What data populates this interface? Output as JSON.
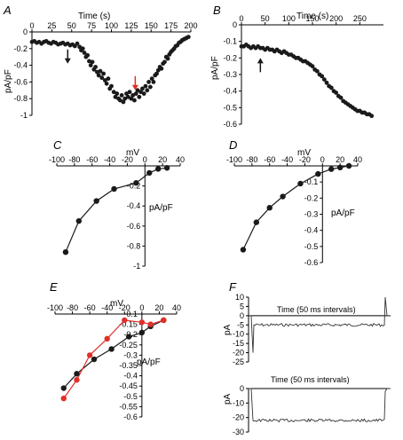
{
  "colors": {
    "black": "#1a1a1a",
    "red": "#e0302a",
    "trace": "#333333"
  },
  "chart_data": [
    {
      "panel": "A",
      "type": "scatter",
      "xlabel": "Time (s)",
      "ylabel": "pA/pF",
      "xlim": [
        0,
        200
      ],
      "ylim": [
        -1,
        0
      ],
      "xticks": [
        0,
        25,
        50,
        75,
        100,
        125,
        150,
        175,
        200
      ],
      "yticks": [
        0,
        -0.2,
        -0.4,
        -0.6,
        -0.8,
        -1
      ],
      "arrows": [
        {
          "x": 45,
          "color": "black"
        },
        {
          "x": 130,
          "color": "red"
        }
      ],
      "series": [
        {
          "points": [
            [
              0,
              -0.12
            ],
            [
              3,
              -0.11
            ],
            [
              6,
              -0.13
            ],
            [
              9,
              -0.12
            ],
            [
              12,
              -0.14
            ],
            [
              15,
              -0.12
            ],
            [
              18,
              -0.11
            ],
            [
              21,
              -0.13
            ],
            [
              24,
              -0.14
            ],
            [
              27,
              -0.12
            ],
            [
              30,
              -0.13
            ],
            [
              33,
              -0.15
            ],
            [
              36,
              -0.14
            ],
            [
              39,
              -0.13
            ],
            [
              42,
              -0.15
            ],
            [
              45,
              -0.14
            ],
            [
              48,
              -0.16
            ],
            [
              51,
              -0.15
            ],
            [
              54,
              -0.17
            ],
            [
              57,
              -0.14
            ],
            [
              60,
              -0.18
            ],
            [
              62,
              -0.22
            ],
            [
              64,
              -0.2
            ],
            [
              66,
              -0.25
            ],
            [
              68,
              -0.3
            ],
            [
              70,
              -0.28
            ],
            [
              72,
              -0.35
            ],
            [
              74,
              -0.4
            ],
            [
              76,
              -0.36
            ],
            [
              78,
              -0.45
            ],
            [
              80,
              -0.42
            ],
            [
              82,
              -0.48
            ],
            [
              84,
              -0.52
            ],
            [
              86,
              -0.47
            ],
            [
              88,
              -0.55
            ],
            [
              90,
              -0.5
            ],
            [
              92,
              -0.58
            ],
            [
              94,
              -0.62
            ],
            [
              96,
              -0.56
            ],
            [
              98,
              -0.68
            ],
            [
              100,
              -0.65
            ],
            [
              103,
              -0.72
            ],
            [
              105,
              -0.78
            ],
            [
              107,
              -0.74
            ],
            [
              109,
              -0.8
            ],
            [
              111,
              -0.82
            ],
            [
              113,
              -0.76
            ],
            [
              115,
              -0.84
            ],
            [
              117,
              -0.8
            ],
            [
              119,
              -0.74
            ],
            [
              121,
              -0.78
            ],
            [
              123,
              -0.72
            ],
            [
              125,
              -0.8
            ],
            [
              127,
              -0.76
            ],
            [
              129,
              -0.82
            ],
            [
              131,
              -0.74
            ],
            [
              133,
              -0.7
            ],
            [
              135,
              -0.78
            ],
            [
              137,
              -0.72
            ],
            [
              139,
              -0.68
            ],
            [
              141,
              -0.74
            ],
            [
              143,
              -0.65
            ],
            [
              145,
              -0.7
            ],
            [
              147,
              -0.6
            ],
            [
              149,
              -0.66
            ],
            [
              151,
              -0.56
            ],
            [
              153,
              -0.6
            ],
            [
              155,
              -0.52
            ],
            [
              157,
              -0.5
            ],
            [
              159,
              -0.46
            ],
            [
              161,
              -0.42
            ],
            [
              163,
              -0.44
            ],
            [
              165,
              -0.38
            ],
            [
              167,
              -0.36
            ],
            [
              169,
              -0.3
            ],
            [
              171,
              -0.32
            ],
            [
              173,
              -0.27
            ],
            [
              175,
              -0.24
            ],
            [
              177,
              -0.22
            ],
            [
              179,
              -0.2
            ],
            [
              181,
              -0.17
            ],
            [
              183,
              -0.16
            ],
            [
              185,
              -0.13
            ],
            [
              187,
              -0.12
            ],
            [
              189,
              -0.1
            ],
            [
              191,
              -0.09
            ],
            [
              193,
              -0.08
            ],
            [
              195,
              -0.07
            ],
            [
              197,
              -0.06
            ]
          ]
        }
      ]
    },
    {
      "panel": "B",
      "type": "scatter",
      "xlabel": "Time (s)",
      "ylabel": "pA/pF",
      "xlim": [
        0,
        300
      ],
      "ylim": [
        -0.6,
        0
      ],
      "xticks": [
        0,
        50,
        100,
        150,
        200,
        250
      ],
      "yticks": [
        0,
        -0.1,
        -0.2,
        -0.3,
        -0.4,
        -0.5,
        -0.6
      ],
      "arrows": [
        {
          "x": 40,
          "color": "black"
        }
      ],
      "series": [
        {
          "points": [
            [
              0,
              -0.13
            ],
            [
              5,
              -0.13
            ],
            [
              10,
              -0.12
            ],
            [
              15,
              -0.13
            ],
            [
              20,
              -0.14
            ],
            [
              25,
              -0.13
            ],
            [
              30,
              -0.14
            ],
            [
              35,
              -0.13
            ],
            [
              40,
              -0.14
            ],
            [
              45,
              -0.14
            ],
            [
              50,
              -0.15
            ],
            [
              55,
              -0.14
            ],
            [
              60,
              -0.15
            ],
            [
              65,
              -0.15
            ],
            [
              70,
              -0.16
            ],
            [
              75,
              -0.15
            ],
            [
              80,
              -0.16
            ],
            [
              85,
              -0.17
            ],
            [
              90,
              -0.16
            ],
            [
              95,
              -0.17
            ],
            [
              100,
              -0.18
            ],
            [
              105,
              -0.18
            ],
            [
              110,
              -0.19
            ],
            [
              115,
              -0.2
            ],
            [
              120,
              -0.2
            ],
            [
              125,
              -0.21
            ],
            [
              130,
              -0.22
            ],
            [
              135,
              -0.22
            ],
            [
              140,
              -0.23
            ],
            [
              145,
              -0.24
            ],
            [
              150,
              -0.25
            ],
            [
              155,
              -0.27
            ],
            [
              160,
              -0.28
            ],
            [
              165,
              -0.3
            ],
            [
              170,
              -0.31
            ],
            [
              175,
              -0.33
            ],
            [
              180,
              -0.35
            ],
            [
              185,
              -0.37
            ],
            [
              190,
              -0.38
            ],
            [
              195,
              -0.4
            ],
            [
              200,
              -0.41
            ],
            [
              205,
              -0.43
            ],
            [
              210,
              -0.44
            ],
            [
              215,
              -0.46
            ],
            [
              220,
              -0.47
            ],
            [
              225,
              -0.48
            ],
            [
              230,
              -0.49
            ],
            [
              235,
              -0.5
            ],
            [
              240,
              -0.51
            ],
            [
              245,
              -0.52
            ],
            [
              250,
              -0.52
            ],
            [
              255,
              -0.53
            ],
            [
              260,
              -0.53
            ],
            [
              265,
              -0.54
            ],
            [
              270,
              -0.54
            ],
            [
              275,
              -0.55
            ]
          ]
        }
      ]
    },
    {
      "panel": "C",
      "type": "line",
      "xlabel": "mV",
      "ylabel": "pA/pF",
      "xlim": [
        -100,
        40
      ],
      "ylim": [
        -1,
        0
      ],
      "xticks": [
        -100,
        -80,
        -60,
        -40,
        -20,
        0,
        20,
        40
      ],
      "yticks": [
        -0.2,
        -0.4,
        -0.6,
        -0.8,
        -1
      ],
      "series": [
        {
          "color": "black",
          "points": [
            [
              -90,
              -0.86
            ],
            [
              -75,
              -0.55
            ],
            [
              -55,
              -0.35
            ],
            [
              -35,
              -0.23
            ],
            [
              -10,
              -0.17
            ],
            [
              5,
              -0.07
            ],
            [
              15,
              -0.03
            ],
            [
              25,
              -0.02
            ]
          ]
        }
      ]
    },
    {
      "panel": "D",
      "type": "line",
      "xlabel": "mV",
      "ylabel": "pA/pF",
      "xlim": [
        -100,
        40
      ],
      "ylim": [
        -0.6,
        0
      ],
      "xticks": [
        -100,
        -80,
        -60,
        -40,
        -20,
        0,
        20,
        40
      ],
      "yticks": [
        -0.1,
        -0.2,
        -0.3,
        -0.4,
        -0.5,
        -0.6
      ],
      "series": [
        {
          "color": "black",
          "points": [
            [
              -90,
              -0.52
            ],
            [
              -75,
              -0.35
            ],
            [
              -60,
              -0.26
            ],
            [
              -45,
              -0.19
            ],
            [
              -25,
              -0.11
            ],
            [
              -5,
              -0.05
            ],
            [
              10,
              -0.02
            ],
            [
              20,
              -0.01
            ],
            [
              30,
              0.0
            ]
          ]
        }
      ]
    },
    {
      "panel": "E",
      "type": "line",
      "xlabel": "mV",
      "ylabel": "pA/pF",
      "xlim": [
        -100,
        40
      ],
      "ylim": [
        -0.6,
        -0.1
      ],
      "xticks": [
        -100,
        -80,
        -60,
        -40,
        -20,
        0,
        20,
        40
      ],
      "yticks": [
        -0.1,
        -0.15,
        -0.2,
        -0.25,
        -0.3,
        -0.35,
        -0.4,
        -0.45,
        -0.5,
        -0.55,
        -0.6
      ],
      "series": [
        {
          "color": "black",
          "points": [
            [
              -90,
              -0.46
            ],
            [
              -75,
              -0.39
            ],
            [
              -55,
              -0.32
            ],
            [
              -35,
              -0.27
            ],
            [
              -15,
              -0.21
            ],
            [
              0,
              -0.19
            ],
            [
              10,
              -0.16
            ],
            [
              25,
              -0.13
            ]
          ]
        },
        {
          "color": "red",
          "points": [
            [
              -90,
              -0.51
            ],
            [
              -75,
              -0.42
            ],
            [
              -60,
              -0.3
            ],
            [
              -40,
              -0.22
            ],
            [
              -20,
              -0.13
            ],
            [
              0,
              -0.14
            ],
            [
              10,
              -0.15
            ],
            [
              25,
              -0.13
            ]
          ]
        }
      ]
    },
    {
      "panel": "F",
      "type": "line",
      "traces": [
        {
          "xlabel": "Time (50 ms intervals)",
          "ylabel": "pA",
          "ylim": [
            -25,
            10
          ],
          "yticks": [
            10,
            5,
            0,
            -5,
            -10,
            -15,
            -20,
            -25
          ],
          "baseline": -5,
          "spike_down": -20,
          "spike_up": 10
        },
        {
          "xlabel": "Time (50 ms intervals)",
          "ylabel": "pA",
          "ylim": [
            -30,
            0
          ],
          "yticks": [
            0,
            -10,
            -20,
            -30
          ],
          "baseline": -22,
          "spike_down": -22,
          "spike_up": -2
        }
      ]
    }
  ]
}
